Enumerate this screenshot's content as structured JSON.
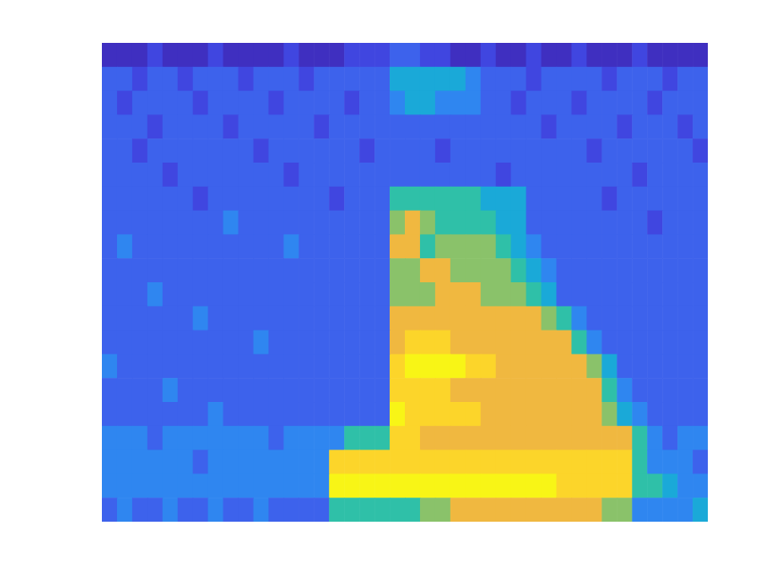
{
  "chart_data": {
    "type": "heatmap",
    "tick_labels": false,
    "clim": [
      0,
      10
    ],
    "cells": [
      [
        1,
        1,
        1,
        2,
        1,
        1,
        1,
        2,
        1,
        1,
        1,
        1,
        2,
        1,
        1,
        1,
        2,
        2,
        2,
        3,
        3,
        2,
        2,
        1,
        1,
        2,
        1,
        1,
        2,
        1,
        1,
        2,
        1,
        1,
        1,
        2,
        1,
        1,
        1,
        1
      ],
      [
        3,
        3,
        2,
        3,
        3,
        2,
        3,
        3,
        3,
        2,
        3,
        3,
        3,
        2,
        3,
        3,
        3,
        3,
        3,
        5,
        5,
        5,
        5,
        5,
        4,
        3,
        3,
        3,
        2,
        3,
        3,
        3,
        3,
        2,
        3,
        3,
        3,
        2,
        3,
        3
      ],
      [
        3,
        2,
        3,
        3,
        3,
        3,
        2,
        3,
        3,
        3,
        3,
        2,
        3,
        3,
        3,
        3,
        2,
        3,
        3,
        4,
        5,
        5,
        4,
        4,
        4,
        3,
        3,
        2,
        3,
        3,
        3,
        2,
        3,
        3,
        3,
        3,
        2,
        3,
        3,
        3
      ],
      [
        3,
        3,
        3,
        2,
        3,
        3,
        3,
        3,
        2,
        3,
        3,
        3,
        3,
        3,
        2,
        3,
        3,
        3,
        3,
        3,
        3,
        3,
        3,
        3,
        3,
        3,
        3,
        3,
        3,
        2,
        3,
        3,
        3,
        3,
        2,
        3,
        3,
        3,
        2,
        3
      ],
      [
        3,
        3,
        2,
        3,
        3,
        3,
        3,
        3,
        3,
        3,
        2,
        3,
        3,
        3,
        3,
        3,
        3,
        2,
        3,
        3,
        3,
        3,
        2,
        3,
        3,
        3,
        3,
        3,
        3,
        3,
        3,
        3,
        2,
        3,
        3,
        3,
        3,
        3,
        3,
        2
      ],
      [
        3,
        3,
        3,
        3,
        2,
        3,
        3,
        3,
        3,
        3,
        3,
        3,
        2,
        3,
        3,
        3,
        3,
        3,
        3,
        3,
        3,
        3,
        3,
        3,
        3,
        3,
        2,
        3,
        3,
        3,
        3,
        3,
        3,
        3,
        3,
        2,
        3,
        3,
        3,
        3
      ],
      [
        3,
        3,
        3,
        3,
        3,
        3,
        2,
        3,
        3,
        3,
        3,
        3,
        3,
        3,
        3,
        2,
        3,
        3,
        3,
        6,
        6,
        6,
        6,
        6,
        6,
        5,
        5,
        5,
        3,
        3,
        3,
        3,
        3,
        2,
        3,
        3,
        3,
        3,
        3,
        3
      ],
      [
        3,
        3,
        3,
        3,
        3,
        3,
        3,
        3,
        4,
        3,
        3,
        3,
        3,
        3,
        3,
        3,
        3,
        3,
        3,
        7,
        8,
        7,
        6,
        6,
        6,
        6,
        5,
        5,
        3,
        3,
        3,
        3,
        3,
        3,
        3,
        3,
        2,
        3,
        3,
        3
      ],
      [
        3,
        4,
        3,
        3,
        3,
        3,
        3,
        3,
        3,
        3,
        3,
        3,
        4,
        3,
        3,
        3,
        3,
        3,
        3,
        8,
        8,
        6,
        7,
        7,
        7,
        7,
        6,
        5,
        4,
        3,
        3,
        3,
        3,
        3,
        3,
        3,
        3,
        3,
        3,
        3
      ],
      [
        3,
        3,
        3,
        3,
        3,
        3,
        3,
        3,
        3,
        3,
        3,
        3,
        3,
        3,
        3,
        3,
        3,
        3,
        3,
        7,
        7,
        8,
        8,
        7,
        7,
        7,
        7,
        6,
        5,
        4,
        3,
        3,
        3,
        3,
        3,
        3,
        3,
        3,
        3,
        3
      ],
      [
        3,
        3,
        3,
        4,
        3,
        3,
        3,
        3,
        3,
        3,
        3,
        3,
        3,
        3,
        3,
        3,
        3,
        3,
        3,
        7,
        7,
        7,
        8,
        8,
        8,
        7,
        7,
        7,
        6,
        5,
        3,
        3,
        3,
        3,
        3,
        3,
        3,
        3,
        3,
        3
      ],
      [
        3,
        3,
        3,
        3,
        3,
        3,
        4,
        3,
        3,
        3,
        3,
        3,
        3,
        3,
        3,
        3,
        3,
        3,
        3,
        8,
        8,
        8,
        8,
        8,
        8,
        8,
        8,
        8,
        8,
        7,
        6,
        4,
        3,
        3,
        3,
        3,
        3,
        3,
        3,
        3
      ],
      [
        3,
        3,
        3,
        3,
        3,
        3,
        3,
        3,
        3,
        3,
        4,
        3,
        3,
        3,
        3,
        3,
        3,
        3,
        3,
        8,
        9,
        9,
        9,
        8,
        8,
        8,
        8,
        8,
        8,
        8,
        8,
        6,
        4,
        3,
        3,
        3,
        3,
        3,
        3,
        3
      ],
      [
        4,
        3,
        3,
        3,
        3,
        3,
        3,
        3,
        3,
        3,
        3,
        3,
        3,
        3,
        3,
        3,
        3,
        3,
        3,
        9,
        10,
        10,
        10,
        10,
        9,
        9,
        8,
        8,
        8,
        8,
        8,
        8,
        7,
        5,
        3,
        3,
        3,
        3,
        3,
        3
      ],
      [
        3,
        3,
        3,
        3,
        4,
        3,
        3,
        3,
        3,
        3,
        3,
        3,
        3,
        3,
        3,
        3,
        3,
        3,
        3,
        9,
        9,
        9,
        9,
        8,
        8,
        8,
        8,
        8,
        8,
        8,
        8,
        8,
        8,
        6,
        4,
        3,
        3,
        3,
        3,
        3
      ],
      [
        3,
        3,
        3,
        3,
        3,
        3,
        3,
        4,
        3,
        3,
        3,
        3,
        3,
        3,
        3,
        3,
        3,
        3,
        3,
        10,
        9,
        9,
        9,
        9,
        9,
        8,
        8,
        8,
        8,
        8,
        8,
        8,
        8,
        7,
        5,
        4,
        3,
        3,
        3,
        3
      ],
      [
        4,
        4,
        4,
        3,
        4,
        4,
        4,
        4,
        4,
        4,
        4,
        3,
        4,
        4,
        4,
        4,
        6,
        6,
        6,
        9,
        9,
        8,
        8,
        8,
        8,
        8,
        8,
        8,
        8,
        8,
        8,
        8,
        8,
        8,
        8,
        6,
        4,
        3,
        4,
        4
      ],
      [
        4,
        4,
        4,
        4,
        4,
        4,
        3,
        4,
        4,
        4,
        4,
        4,
        4,
        4,
        4,
        9,
        9,
        9,
        9,
        9,
        9,
        9,
        9,
        9,
        9,
        9,
        9,
        9,
        9,
        9,
        9,
        9,
        9,
        9,
        9,
        6,
        4,
        4,
        4,
        3
      ],
      [
        4,
        4,
        4,
        4,
        4,
        4,
        4,
        4,
        4,
        4,
        4,
        4,
        4,
        4,
        4,
        10,
        10,
        10,
        10,
        10,
        10,
        10,
        10,
        10,
        10,
        10,
        10,
        10,
        10,
        10,
        9,
        9,
        9,
        9,
        9,
        6,
        6,
        5,
        4,
        4
      ],
      [
        3,
        4,
        3,
        3,
        4,
        3,
        3,
        4,
        3,
        3,
        4,
        3,
        3,
        3,
        3,
        6,
        6,
        6,
        6,
        6,
        6,
        7,
        7,
        8,
        8,
        8,
        8,
        8,
        8,
        8,
        8,
        8,
        8,
        7,
        7,
        4,
        4,
        4,
        4,
        5
      ]
    ]
  }
}
